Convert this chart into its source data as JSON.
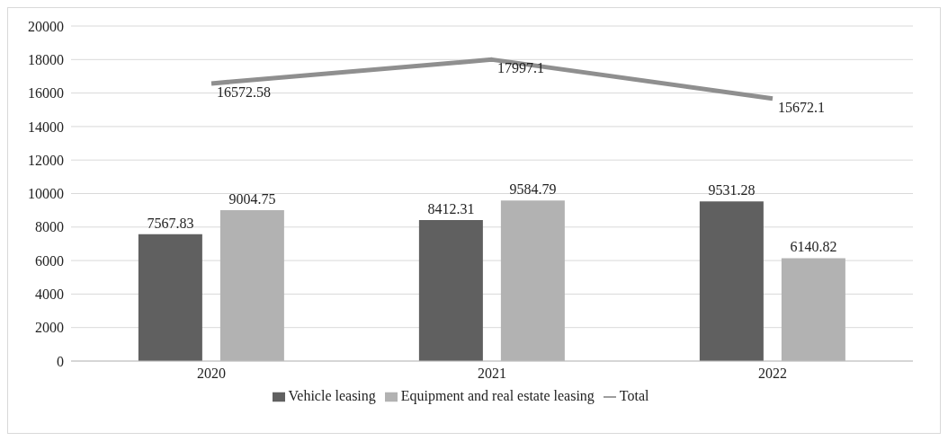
{
  "chart_data": {
    "type": "bar",
    "categories": [
      "2020",
      "2021",
      "2022"
    ],
    "series": [
      {
        "name": "Vehicle leasing",
        "color": "#606060",
        "values": [
          7567.83,
          8412.31,
          9531.28
        ]
      },
      {
        "name": "Equipment and real estate leasing",
        "color": "#b2b2b2",
        "values": [
          9004.75,
          9584.79,
          6140.82
        ]
      },
      {
        "name": "Total",
        "type": "line",
        "color": "#8f8f8f",
        "values": [
          16572.58,
          17997.1,
          15672.1
        ]
      }
    ],
    "ylim": [
      0,
      20000
    ],
    "yticks": [
      0,
      2000,
      4000,
      6000,
      8000,
      10000,
      12000,
      14000,
      16000,
      18000,
      20000
    ],
    "grid": "y",
    "legend": "bottom",
    "data_labels": true,
    "marker": "none"
  }
}
